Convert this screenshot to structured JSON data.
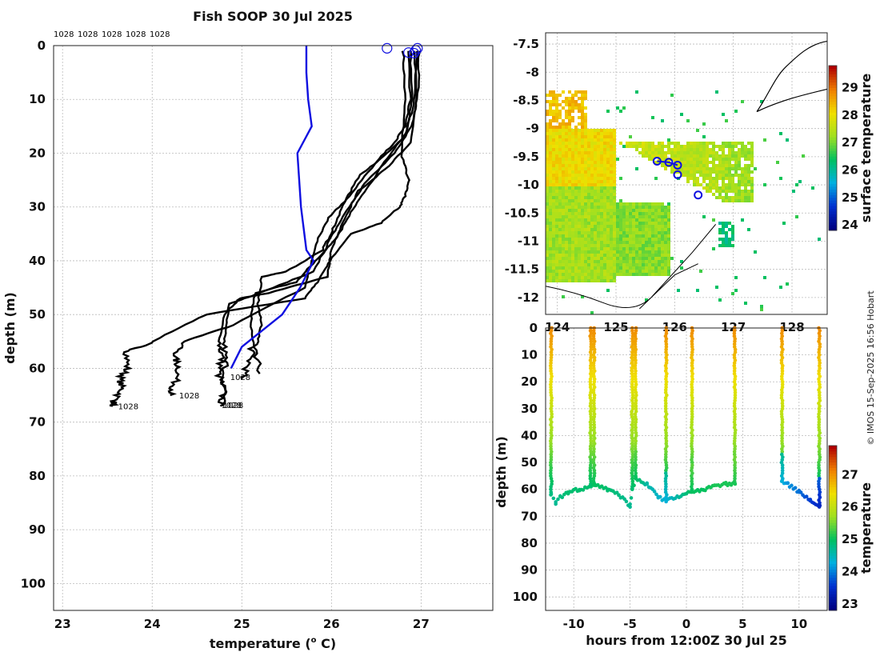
{
  "colors": {
    "profile_line": "#000000",
    "climatology_line": "#1010e0",
    "circle_marker": "#1010e0",
    "colormap": [
      "#00007f",
      "#0030d0",
      "#00b0e0",
      "#00c060",
      "#a0e020",
      "#f0e000",
      "#f08000",
      "#b00000"
    ]
  },
  "chart_data": [
    {
      "id": "profiles",
      "type": "line",
      "title": "Fish SOOP 30 Jul 2025",
      "xlabel": "temperature (o C)",
      "xlabel_unit_sup": "o",
      "xlabel_prefix": "temperature (",
      "xlabel_suffix": " C)",
      "ylabel": "depth (m)",
      "xlim": [
        22.9,
        27.8
      ],
      "ylim": [
        0,
        105
      ],
      "xticks": [
        23,
        24,
        25,
        26,
        27
      ],
      "yticks": [
        0,
        10,
        20,
        30,
        40,
        50,
        60,
        70,
        80,
        90,
        100
      ],
      "top_labels": [
        "1028",
        "1028",
        "1028",
        "1028",
        "1028"
      ],
      "depth_labels": [
        {
          "text": "1028",
          "x": 23.62,
          "y": 67.6
        },
        {
          "text": "1028",
          "x": 24.3,
          "y": 65.6
        },
        {
          "text": "1028",
          "x": 24.77,
          "y": 67.4
        },
        {
          "text": "1028",
          "x": 24.79,
          "y": 67.4
        },
        {
          "text": "1028",
          "x": 24.87,
          "y": 62.2
        }
      ],
      "series": [
        {
          "name": "profile 1",
          "x": [
            26.8,
            26.82,
            26.78,
            26.86,
            26.82,
            26.76,
            26.55,
            26.22,
            25.98,
            25.84,
            25.7,
            24.6,
            24.0,
            23.72,
            23.72,
            23.64,
            23.66,
            23.58,
            23.56
          ],
          "y": [
            1,
            10,
            20,
            25,
            28,
            30,
            33,
            35,
            40,
            44,
            47,
            50,
            55,
            57,
            60,
            62,
            64,
            66,
            67
          ]
        },
        {
          "name": "profile 2",
          "x": [
            26.85,
            26.88,
            26.82,
            26.7,
            26.48,
            26.2,
            25.97,
            25.82,
            25.7,
            24.9,
            24.35,
            24.25,
            24.3,
            24.25,
            24.2
          ],
          "y": [
            1,
            10,
            15,
            18,
            22,
            28,
            32,
            37,
            45,
            52,
            55,
            58,
            60,
            63,
            65
          ]
        },
        {
          "name": "profile 3",
          "x": [
            26.92,
            26.95,
            26.88,
            26.6,
            26.3,
            26.12,
            26.0,
            25.95,
            25.3,
            24.98,
            24.8,
            24.75,
            24.78,
            24.74,
            24.8,
            24.76
          ],
          "y": [
            1,
            10,
            18,
            23,
            27,
            33,
            38,
            43,
            46,
            47,
            50,
            55,
            58,
            61,
            64,
            67
          ]
        },
        {
          "name": "profile 4",
          "x": [
            26.98,
            26.96,
            26.9,
            26.7,
            26.4,
            26.2,
            26.02,
            25.8,
            25.2,
            24.86,
            24.82,
            24.8,
            24.82,
            24.78
          ],
          "y": [
            1,
            10,
            15,
            20,
            25,
            30,
            35,
            42,
            46,
            48,
            52,
            56,
            60,
            67
          ]
        },
        {
          "name": "profile 5",
          "x": [
            26.88,
            26.9,
            26.84,
            26.62,
            26.42,
            26.22,
            26.05,
            25.82,
            25.6,
            25.15,
            25.1,
            25.12,
            25.08,
            25.0
          ],
          "y": [
            1,
            10,
            16,
            21,
            26,
            31,
            36,
            40,
            44,
            46,
            50,
            56,
            59,
            62
          ]
        },
        {
          "name": "profile 6",
          "x": [
            26.95,
            26.93,
            26.82,
            26.55,
            26.32,
            26.15,
            26.02,
            25.9,
            25.5,
            25.22,
            25.18,
            25.22,
            25.16,
            25.2
          ],
          "y": [
            1,
            10,
            17,
            21,
            24,
            29,
            34,
            38,
            42,
            43,
            48,
            52,
            56,
            61
          ]
        }
      ],
      "climatology": {
        "name": "climatology",
        "x": [
          25.72,
          25.72,
          25.74,
          25.78,
          25.62,
          25.66,
          25.72,
          25.8,
          25.65,
          25.45,
          25.0,
          24.88
        ],
        "y": [
          0,
          5,
          10,
          15,
          20,
          30,
          38,
          40,
          45,
          50,
          56,
          60
        ]
      },
      "markers": {
        "x": [
          26.62,
          26.86,
          26.92,
          26.94,
          26.96
        ],
        "y": [
          0.5,
          1.3,
          1.4,
          0.9,
          0.5
        ]
      }
    },
    {
      "id": "map",
      "type": "heatmap",
      "colorbar_label": "surface temperature",
      "colorbar_ticks": [
        24,
        25,
        26,
        27,
        28,
        29
      ],
      "colorbar_range": [
        23.8,
        29.8
      ],
      "xlim": [
        123.8,
        128.6
      ],
      "ylim": [
        -12.3,
        -7.3
      ],
      "xtick_labels": [
        "124",
        "125",
        "126",
        "127",
        "128"
      ],
      "ytick_labels": [
        "-7.5",
        "-8",
        "-8.5",
        "-9",
        "-9.5",
        "-10",
        "-10.5",
        "-11",
        "-11.5",
        "-12"
      ],
      "yticks": [
        -7.5,
        -8,
        -8.5,
        -9,
        -9.5,
        -10,
        -10.5,
        -11,
        -11.5,
        -12
      ],
      "stations": {
        "lon": [
          125.7,
          125.9,
          126.05,
          126.05,
          126.4
        ],
        "lat": [
          -9.58,
          -9.6,
          -9.65,
          -9.82,
          -10.18
        ]
      }
    },
    {
      "id": "section",
      "type": "scatter",
      "xlabel": "hours from 12:00Z 30 Jul 25",
      "ylabel": "depth (m)",
      "colorbar_label": "temperature",
      "colorbar_ticks": [
        23,
        24,
        25,
        26,
        27
      ],
      "colorbar_range": [
        22.8,
        27.9
      ],
      "xlim": [
        -12.5,
        12.5
      ],
      "ylim": [
        0,
        105
      ],
      "xticks": [
        -10,
        -5,
        0,
        5,
        10
      ],
      "yticks": [
        0,
        10,
        20,
        30,
        40,
        50,
        60,
        70,
        80,
        90,
        100
      ],
      "casts": [
        {
          "t": -12.0,
          "bottom": 62,
          "deep": 24.8
        },
        {
          "t": -8.5,
          "bottom": 59,
          "deep": 24.9
        },
        {
          "t": -8.2,
          "bottom": 58,
          "deep": 25.0
        },
        {
          "t": -4.8,
          "bottom": 60,
          "deep": 24.9
        },
        {
          "t": -4.5,
          "bottom": 56,
          "deep": 25.0
        },
        {
          "t": -1.8,
          "bottom": 64,
          "deep": 24.3
        },
        {
          "t": 0.5,
          "bottom": 61,
          "deep": 25.0
        },
        {
          "t": 4.3,
          "bottom": 58,
          "deep": 25.1
        },
        {
          "t": 8.5,
          "bottom": 57,
          "deep": 24.3
        },
        {
          "t": 11.8,
          "bottom": 66,
          "deep": 23.4
        }
      ],
      "bottom_track": {
        "t": [
          -12.0,
          -11.6,
          -11.2,
          -10.5,
          -9.5,
          -8.5,
          -8.2,
          -7.0,
          -6.0,
          -5.0,
          -4.8,
          -4.5,
          -3.5,
          -2.5,
          -1.8,
          0.5,
          1.5,
          2.5,
          3.5,
          4.3,
          8.5,
          9.0,
          10.0,
          11.0,
          11.8
        ],
        "depth": [
          62,
          65,
          63,
          61,
          60,
          59,
          58,
          60,
          62,
          66,
          60,
          56,
          58,
          63,
          64,
          61,
          60,
          59,
          58,
          58,
          57,
          58,
          61,
          64,
          66
        ],
        "temp": [
          24.8,
          24.7,
          24.8,
          24.9,
          24.9,
          24.9,
          25.0,
          24.9,
          24.8,
          24.7,
          24.9,
          25.0,
          24.6,
          24.4,
          24.3,
          25.0,
          25.0,
          25.1,
          25.1,
          25.1,
          24.3,
          24.1,
          23.9,
          23.6,
          23.4
        ]
      }
    }
  ],
  "credit": "© IMOS 15-Sep-2025 16:56 Hobart"
}
